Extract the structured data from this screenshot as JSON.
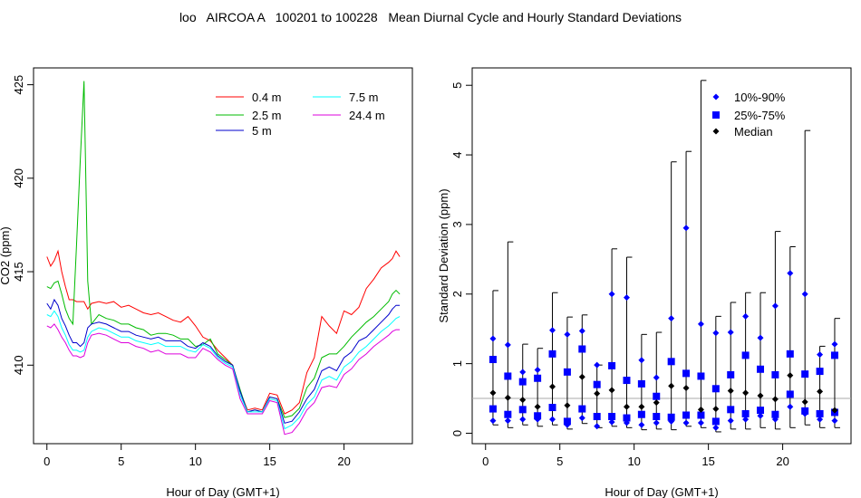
{
  "title": "loo   AIRCOA A   100201 to 100228   Mean Diurnal Cycle and Hourly Standard Deviations",
  "chart_data": [
    {
      "type": "line",
      "xlabel": "Hour of Day (GMT+1)",
      "ylabel": "CO2 (ppm)",
      "xlim": [
        -0.9,
        24.6
      ],
      "ylim": [
        405.8,
        425.9
      ],
      "xticks": [
        0,
        5,
        10,
        15,
        20
      ],
      "yticks": [
        410,
        415,
        420,
        425
      ],
      "legend_position": "top-right",
      "series": [
        {
          "name": "0.4 m",
          "color": "#ff0000",
          "x": [
            0,
            0.25,
            0.5,
            0.75,
            1,
            1.25,
            1.5,
            1.75,
            2,
            2.25,
            2.5,
            2.75,
            3,
            3.5,
            4,
            4.5,
            5,
            5.5,
            6,
            6.5,
            7,
            7.5,
            8,
            8.5,
            9,
            9.5,
            10,
            10.5,
            11,
            11.5,
            12,
            12.5,
            13,
            13.5,
            14,
            14.5,
            15,
            15.5,
            16,
            16.5,
            17,
            17.5,
            18,
            18.5,
            19,
            19.5,
            20,
            20.5,
            21,
            21.5,
            22,
            22.5,
            23,
            23.25,
            23.5,
            23.75
          ],
          "y": [
            415.8,
            415.3,
            415.6,
            416.1,
            415.0,
            414.2,
            413.5,
            413.5,
            413.4,
            413.4,
            413.4,
            413.0,
            413.3,
            413.4,
            413.3,
            413.4,
            413.1,
            413.2,
            413.0,
            412.8,
            412.7,
            412.8,
            412.6,
            412.4,
            412.3,
            412.6,
            412.1,
            411.5,
            411.3,
            410.8,
            410.4,
            410.0,
            408.6,
            407.6,
            407.7,
            407.6,
            408.5,
            408.4,
            407.4,
            407.6,
            408.0,
            409.6,
            410.4,
            412.6,
            412.1,
            411.7,
            412.9,
            412.7,
            413.1,
            414.1,
            414.6,
            415.2,
            415.5,
            415.7,
            416.1,
            415.8
          ]
        },
        {
          "name": "2.5 m",
          "color": "#00bb00",
          "x": [
            0,
            0.25,
            0.5,
            0.75,
            1,
            1.25,
            1.5,
            1.75,
            2,
            2.25,
            2.5,
            2.75,
            3,
            3.5,
            4,
            4.5,
            5,
            5.5,
            6,
            6.5,
            7,
            7.5,
            8,
            8.5,
            9,
            9.5,
            10,
            10.5,
            11,
            11.5,
            12,
            12.5,
            13,
            13.5,
            14,
            14.5,
            15,
            15.5,
            16,
            16.5,
            17,
            17.5,
            18,
            18.5,
            19,
            19.5,
            20,
            20.5,
            21,
            21.5,
            22,
            22.5,
            23,
            23.25,
            23.5,
            23.75
          ],
          "y": [
            414.2,
            414.1,
            414.4,
            414.5,
            413.8,
            413.0,
            412.5,
            412.2,
            416.5,
            421.0,
            425.2,
            414.5,
            412.2,
            412.7,
            412.5,
            412.4,
            412.2,
            412.2,
            412.0,
            411.9,
            411.6,
            411.7,
            411.7,
            411.6,
            411.4,
            411.4,
            411.0,
            411.1,
            411.4,
            410.6,
            410.3,
            410.0,
            408.7,
            407.5,
            407.6,
            407.5,
            408.3,
            408.2,
            407.2,
            407.3,
            407.7,
            408.8,
            409.3,
            410.4,
            410.6,
            410.6,
            411.0,
            411.5,
            411.9,
            412.3,
            412.6,
            413.0,
            413.4,
            413.8,
            414.0,
            413.8
          ]
        },
        {
          "name": "5 m",
          "color": "#0000cc",
          "x": [
            0,
            0.25,
            0.5,
            0.75,
            1,
            1.25,
            1.5,
            1.75,
            2,
            2.25,
            2.5,
            2.75,
            3,
            3.5,
            4,
            4.5,
            5,
            5.5,
            6,
            6.5,
            7,
            7.5,
            8,
            8.5,
            9,
            9.5,
            10,
            10.5,
            11,
            11.5,
            12,
            12.5,
            13,
            13.5,
            14,
            14.5,
            15,
            15.5,
            16,
            16.5,
            17,
            17.5,
            18,
            18.5,
            19,
            19.5,
            20,
            20.5,
            21,
            21.5,
            22,
            22.5,
            23,
            23.25,
            23.5,
            23.75
          ],
          "y": [
            413.3,
            413.0,
            413.5,
            413.2,
            412.5,
            412.1,
            411.6,
            411.2,
            411.2,
            411.0,
            411.2,
            412.0,
            412.2,
            412.3,
            412.2,
            412.0,
            411.8,
            411.8,
            411.6,
            411.5,
            411.4,
            411.5,
            411.3,
            411.3,
            411.3,
            411.0,
            410.9,
            411.2,
            411.0,
            410.5,
            410.2,
            410.0,
            408.6,
            407.5,
            407.6,
            407.5,
            408.3,
            408.2,
            406.9,
            407.0,
            407.5,
            408.2,
            408.7,
            409.7,
            409.9,
            409.7,
            410.4,
            410.7,
            411.3,
            411.5,
            411.9,
            412.3,
            412.7,
            413.0,
            413.2,
            413.2
          ]
        },
        {
          "name": "7.5 m",
          "color": "#00ffff",
          "x": [
            0,
            0.25,
            0.5,
            0.75,
            1,
            1.25,
            1.5,
            1.75,
            2,
            2.25,
            2.5,
            2.75,
            3,
            3.5,
            4,
            4.5,
            5,
            5.5,
            6,
            6.5,
            7,
            7.5,
            8,
            8.5,
            9,
            9.5,
            10,
            10.5,
            11,
            11.5,
            12,
            12.5,
            13,
            13.5,
            14,
            14.5,
            15,
            15.5,
            16,
            16.5,
            17,
            17.5,
            18,
            18.5,
            19,
            19.5,
            20,
            20.5,
            21,
            21.5,
            22,
            22.5,
            23,
            23.25,
            23.5,
            23.75
          ],
          "y": [
            412.7,
            412.6,
            412.9,
            412.6,
            412.0,
            411.6,
            411.1,
            410.8,
            410.8,
            410.7,
            410.8,
            411.5,
            411.8,
            412.0,
            411.9,
            411.7,
            411.5,
            411.5,
            411.3,
            411.2,
            411.1,
            411.2,
            411.0,
            411.0,
            411.0,
            410.8,
            410.7,
            411.1,
            410.9,
            410.4,
            410.1,
            409.9,
            408.4,
            407.5,
            407.5,
            407.5,
            408.2,
            408.1,
            406.6,
            406.8,
            407.2,
            407.9,
            408.3,
            409.2,
            409.4,
            409.2,
            409.9,
            410.2,
            410.7,
            411.0,
            411.4,
            411.8,
            412.1,
            412.3,
            412.5,
            412.6
          ]
        },
        {
          "name": "24.4 m",
          "color": "#dd00dd",
          "x": [
            0,
            0.25,
            0.5,
            0.75,
            1,
            1.25,
            1.5,
            1.75,
            2,
            2.25,
            2.5,
            2.75,
            3,
            3.5,
            4,
            4.5,
            5,
            5.5,
            6,
            6.5,
            7,
            7.5,
            8,
            8.5,
            9,
            9.5,
            10,
            10.5,
            11,
            11.5,
            12,
            12.5,
            13,
            13.5,
            14,
            14.5,
            15,
            15.5,
            16,
            16.5,
            17,
            17.5,
            18,
            18.5,
            19,
            19.5,
            20,
            20.5,
            21,
            21.5,
            22,
            22.5,
            23,
            23.25,
            23.5,
            23.75
          ],
          "y": [
            412.1,
            412.0,
            412.2,
            411.9,
            411.5,
            411.2,
            410.8,
            410.5,
            410.5,
            410.4,
            410.5,
            411.2,
            411.6,
            411.7,
            411.6,
            411.4,
            411.2,
            411.2,
            411.0,
            410.9,
            410.7,
            410.8,
            410.6,
            410.6,
            410.6,
            410.4,
            410.4,
            410.9,
            410.7,
            410.3,
            410.0,
            409.8,
            408.2,
            407.4,
            407.4,
            407.4,
            408.1,
            408.0,
            406.3,
            406.4,
            406.9,
            407.6,
            408.0,
            408.8,
            408.9,
            408.8,
            409.5,
            409.8,
            410.3,
            410.6,
            411.0,
            411.3,
            411.6,
            411.8,
            411.9,
            411.9
          ]
        }
      ]
    },
    {
      "type": "scatter",
      "xlabel": "Hour of Day (GMT+1)",
      "ylabel": "Standard Deviation (ppm)",
      "xlim": [
        -0.9,
        24.6
      ],
      "ylim": [
        -0.15,
        5.25
      ],
      "xticks": [
        0,
        5,
        10,
        15,
        20
      ],
      "yticks": [
        0,
        1,
        2,
        3,
        4,
        5
      ],
      "reference_line": 0.5,
      "legend_position": "top-right",
      "legend": [
        {
          "label": "10%-90%",
          "marker": "diamond",
          "color": "#0000ff"
        },
        {
          "label": "25%-75%",
          "marker": "square",
          "color": "#0000ff"
        },
        {
          "label": "Median",
          "marker": "diamond",
          "color": "#000000"
        }
      ],
      "hours": [
        0.5,
        1.5,
        2.5,
        3.5,
        4.5,
        5.5,
        6.5,
        7.5,
        8.5,
        9.5,
        10.5,
        11.5,
        12.5,
        13.5,
        14.5,
        15.5,
        16.5,
        17.5,
        18.5,
        19.5,
        20.5,
        21.5,
        22.5,
        23.5
      ],
      "whisker_min": [
        0.12,
        0.08,
        0.12,
        0.1,
        0.12,
        0.06,
        0.14,
        0.08,
        0.1,
        0.08,
        0.05,
        0.06,
        0.05,
        0.1,
        0.08,
        0.02,
        0.06,
        0.06,
        0.08,
        0.06,
        0.08,
        0.12,
        0.08,
        0.08
      ],
      "whisker_max": [
        2.05,
        2.75,
        1.28,
        1.22,
        2.02,
        1.67,
        1.7,
        0.98,
        2.65,
        2.53,
        1.42,
        1.45,
        3.9,
        4.05,
        5.07,
        1.68,
        1.88,
        2.02,
        2.02,
        2.9,
        2.68,
        4.35,
        1.25,
        1.65
      ],
      "p10": [
        0.18,
        0.18,
        0.2,
        0.2,
        0.2,
        0.12,
        0.22,
        0.1,
        0.16,
        0.15,
        0.12,
        0.15,
        0.17,
        0.15,
        0.15,
        0.08,
        0.18,
        0.2,
        0.25,
        0.2,
        0.38,
        0.28,
        0.2,
        0.18
      ],
      "p90": [
        1.36,
        1.27,
        0.88,
        0.91,
        1.48,
        1.42,
        1.47,
        0.98,
        2.0,
        1.95,
        1.05,
        0.8,
        1.65,
        2.95,
        1.57,
        1.44,
        1.45,
        1.68,
        1.37,
        1.83,
        2.3,
        2.0,
        1.13,
        1.28
      ],
      "p25": [
        0.35,
        0.27,
        0.34,
        0.25,
        0.37,
        0.17,
        0.35,
        0.24,
        0.24,
        0.22,
        0.27,
        0.24,
        0.23,
        0.26,
        0.26,
        0.17,
        0.34,
        0.28,
        0.33,
        0.27,
        0.56,
        0.32,
        0.28,
        0.3
      ],
      "p75": [
        1.06,
        0.82,
        0.74,
        0.79,
        1.14,
        0.88,
        1.21,
        0.7,
        0.97,
        0.76,
        0.71,
        0.53,
        1.03,
        0.86,
        0.82,
        0.64,
        0.84,
        1.12,
        0.92,
        0.84,
        1.14,
        0.85,
        0.89,
        1.12
      ],
      "median": [
        0.58,
        0.51,
        0.48,
        0.38,
        0.67,
        0.4,
        0.81,
        0.57,
        0.62,
        0.38,
        0.38,
        0.44,
        0.68,
        0.65,
        0.34,
        0.35,
        0.61,
        0.58,
        0.54,
        0.49,
        0.83,
        0.45,
        0.6,
        0.33
      ]
    }
  ]
}
